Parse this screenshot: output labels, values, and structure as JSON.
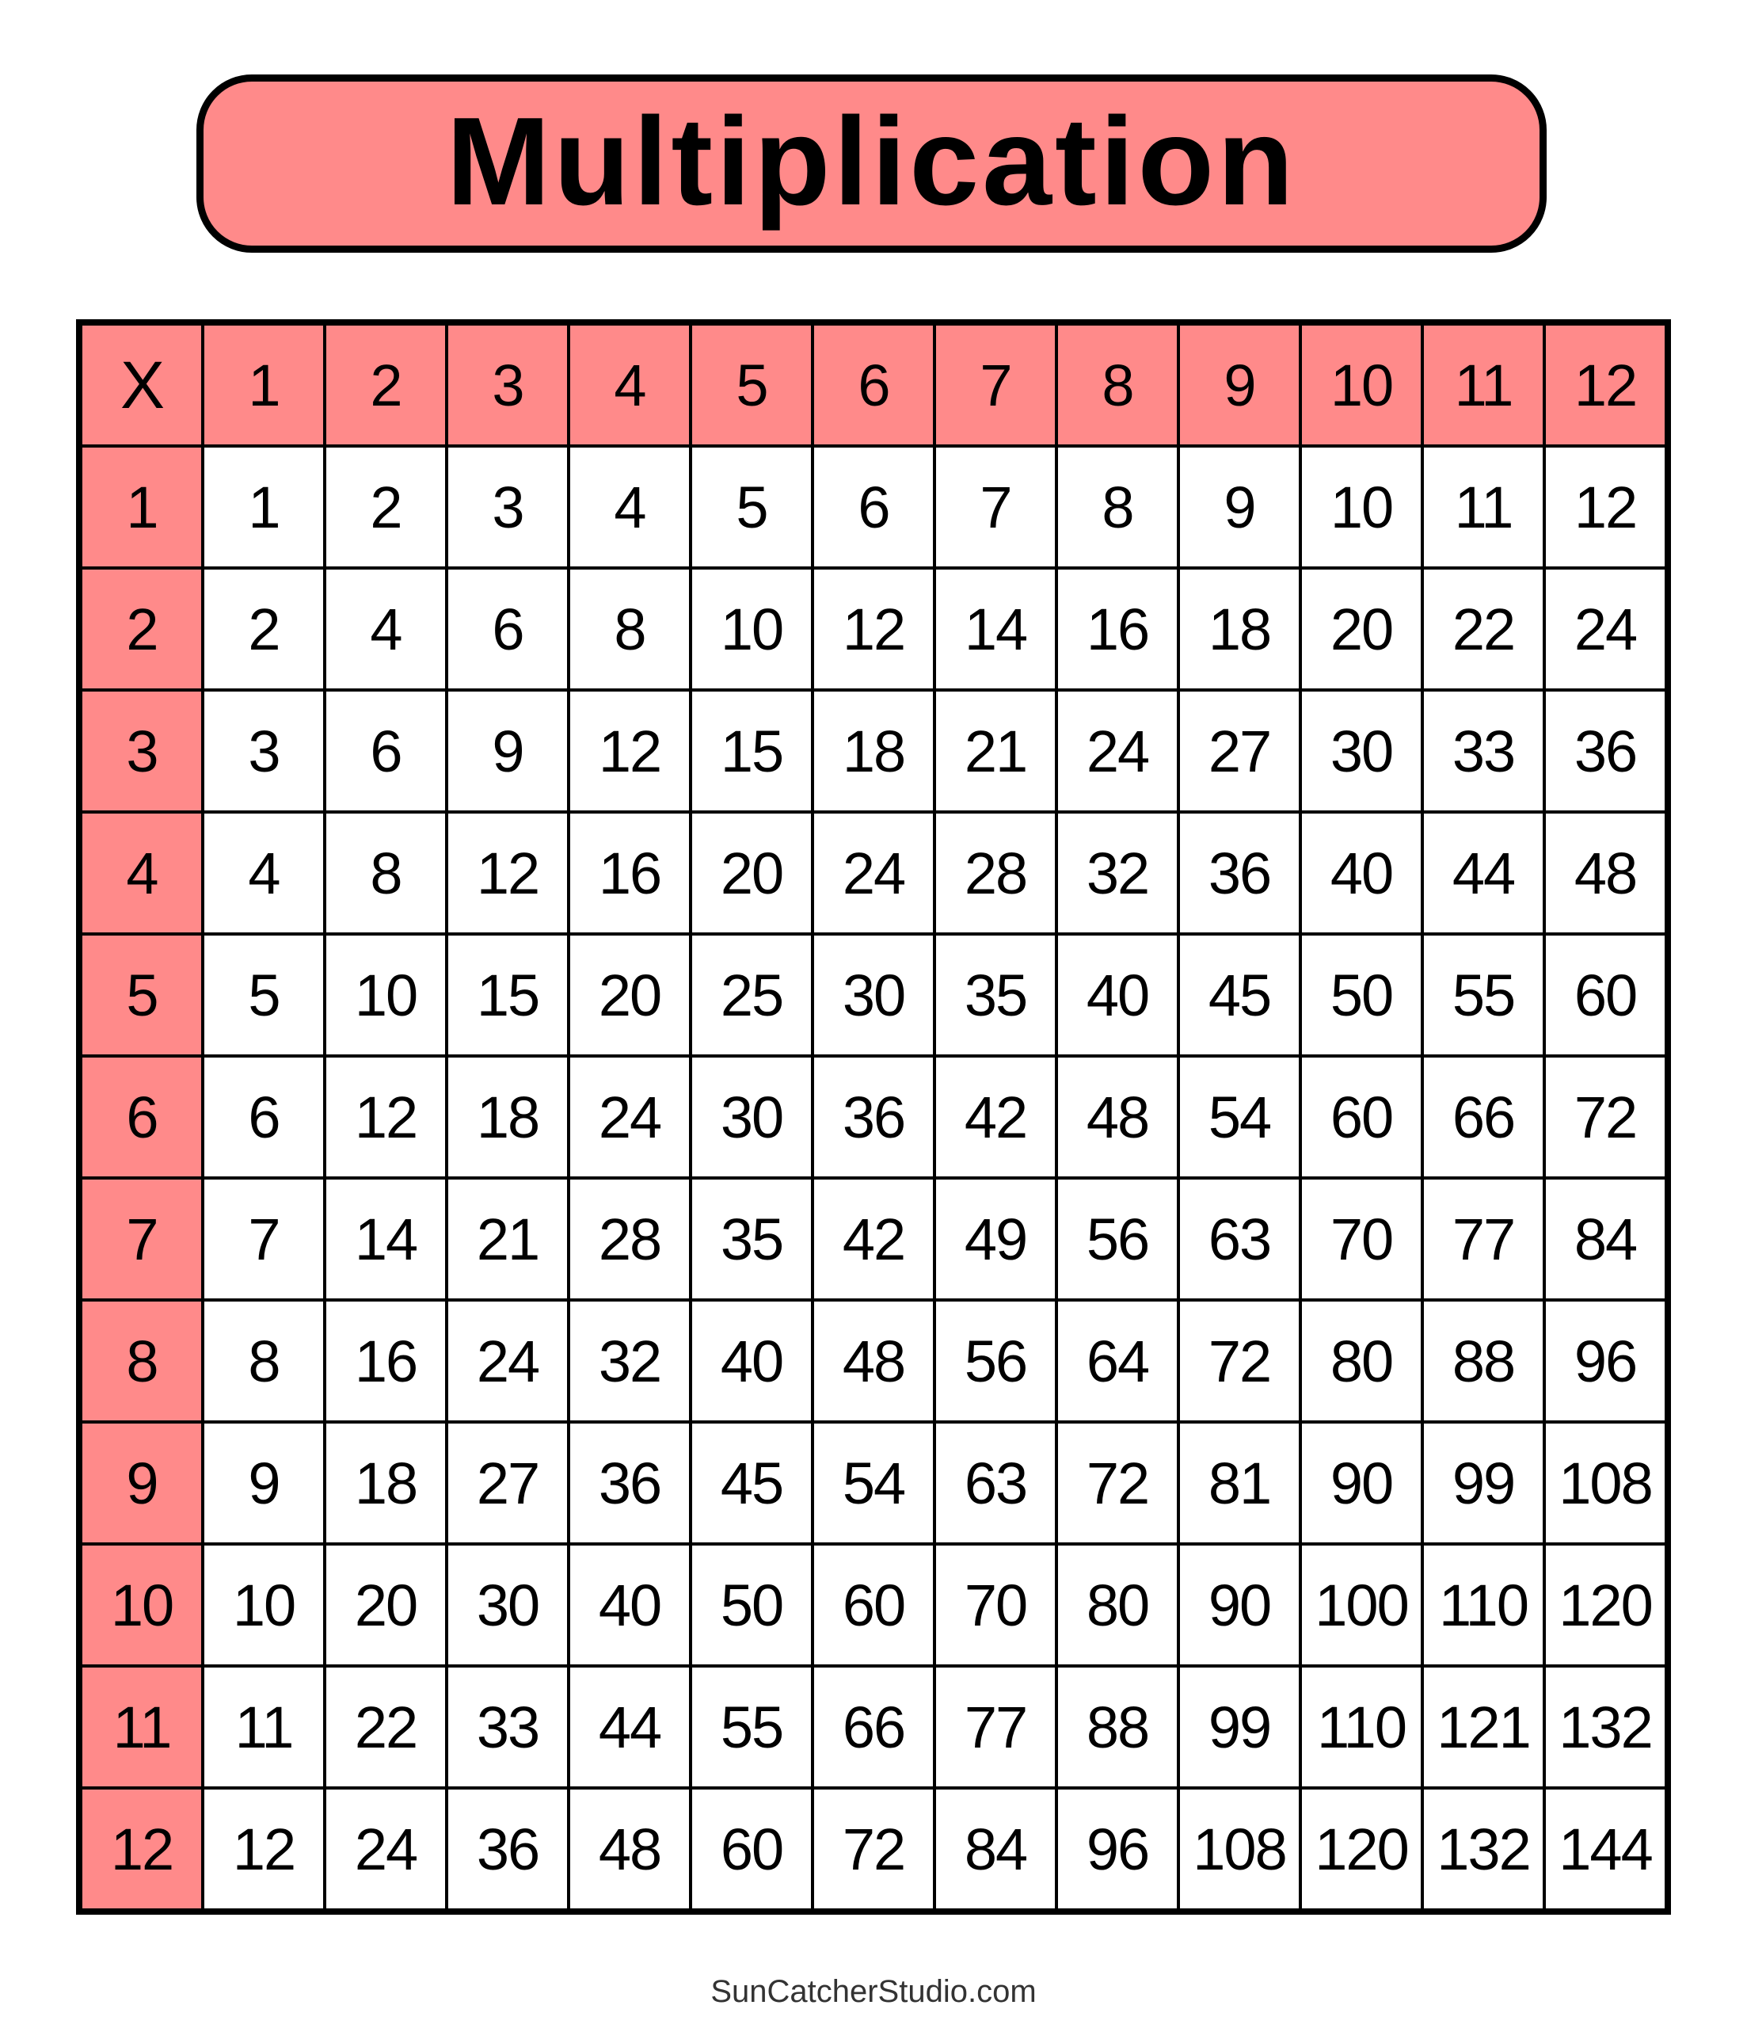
{
  "title": "Multiplication",
  "corner_label": "X",
  "column_headers": [
    "1",
    "2",
    "3",
    "4",
    "5",
    "6",
    "7",
    "8",
    "9",
    "10",
    "11",
    "12"
  ],
  "row_headers": [
    "1",
    "2",
    "3",
    "4",
    "5",
    "6",
    "7",
    "8",
    "9",
    "10",
    "11",
    "12"
  ],
  "rows": [
    [
      "1",
      "2",
      "3",
      "4",
      "5",
      "6",
      "7",
      "8",
      "9",
      "10",
      "11",
      "12"
    ],
    [
      "2",
      "4",
      "6",
      "8",
      "10",
      "12",
      "14",
      "16",
      "18",
      "20",
      "22",
      "24"
    ],
    [
      "3",
      "6",
      "9",
      "12",
      "15",
      "18",
      "21",
      "24",
      "27",
      "30",
      "33",
      "36"
    ],
    [
      "4",
      "8",
      "12",
      "16",
      "20",
      "24",
      "28",
      "32",
      "36",
      "40",
      "44",
      "48"
    ],
    [
      "5",
      "10",
      "15",
      "20",
      "25",
      "30",
      "35",
      "40",
      "45",
      "50",
      "55",
      "60"
    ],
    [
      "6",
      "12",
      "18",
      "24",
      "30",
      "36",
      "42",
      "48",
      "54",
      "60",
      "66",
      "72"
    ],
    [
      "7",
      "14",
      "21",
      "28",
      "35",
      "42",
      "49",
      "56",
      "63",
      "70",
      "77",
      "84"
    ],
    [
      "8",
      "16",
      "24",
      "32",
      "40",
      "48",
      "56",
      "64",
      "72",
      "80",
      "88",
      "96"
    ],
    [
      "9",
      "18",
      "27",
      "36",
      "45",
      "54",
      "63",
      "72",
      "81",
      "90",
      "99",
      "108"
    ],
    [
      "10",
      "20",
      "30",
      "40",
      "50",
      "60",
      "70",
      "80",
      "90",
      "100",
      "110",
      "120"
    ],
    [
      "11",
      "22",
      "33",
      "44",
      "55",
      "66",
      "77",
      "88",
      "99",
      "110",
      "121",
      "132"
    ],
    [
      "12",
      "24",
      "36",
      "48",
      "60",
      "72",
      "84",
      "96",
      "108",
      "120",
      "132",
      "144"
    ]
  ],
  "footer": "SunCatcherStudio.com",
  "colors": {
    "header_fill": "#FF8A8A",
    "border": "#000000",
    "cell_fill": "#FFFFFF"
  }
}
